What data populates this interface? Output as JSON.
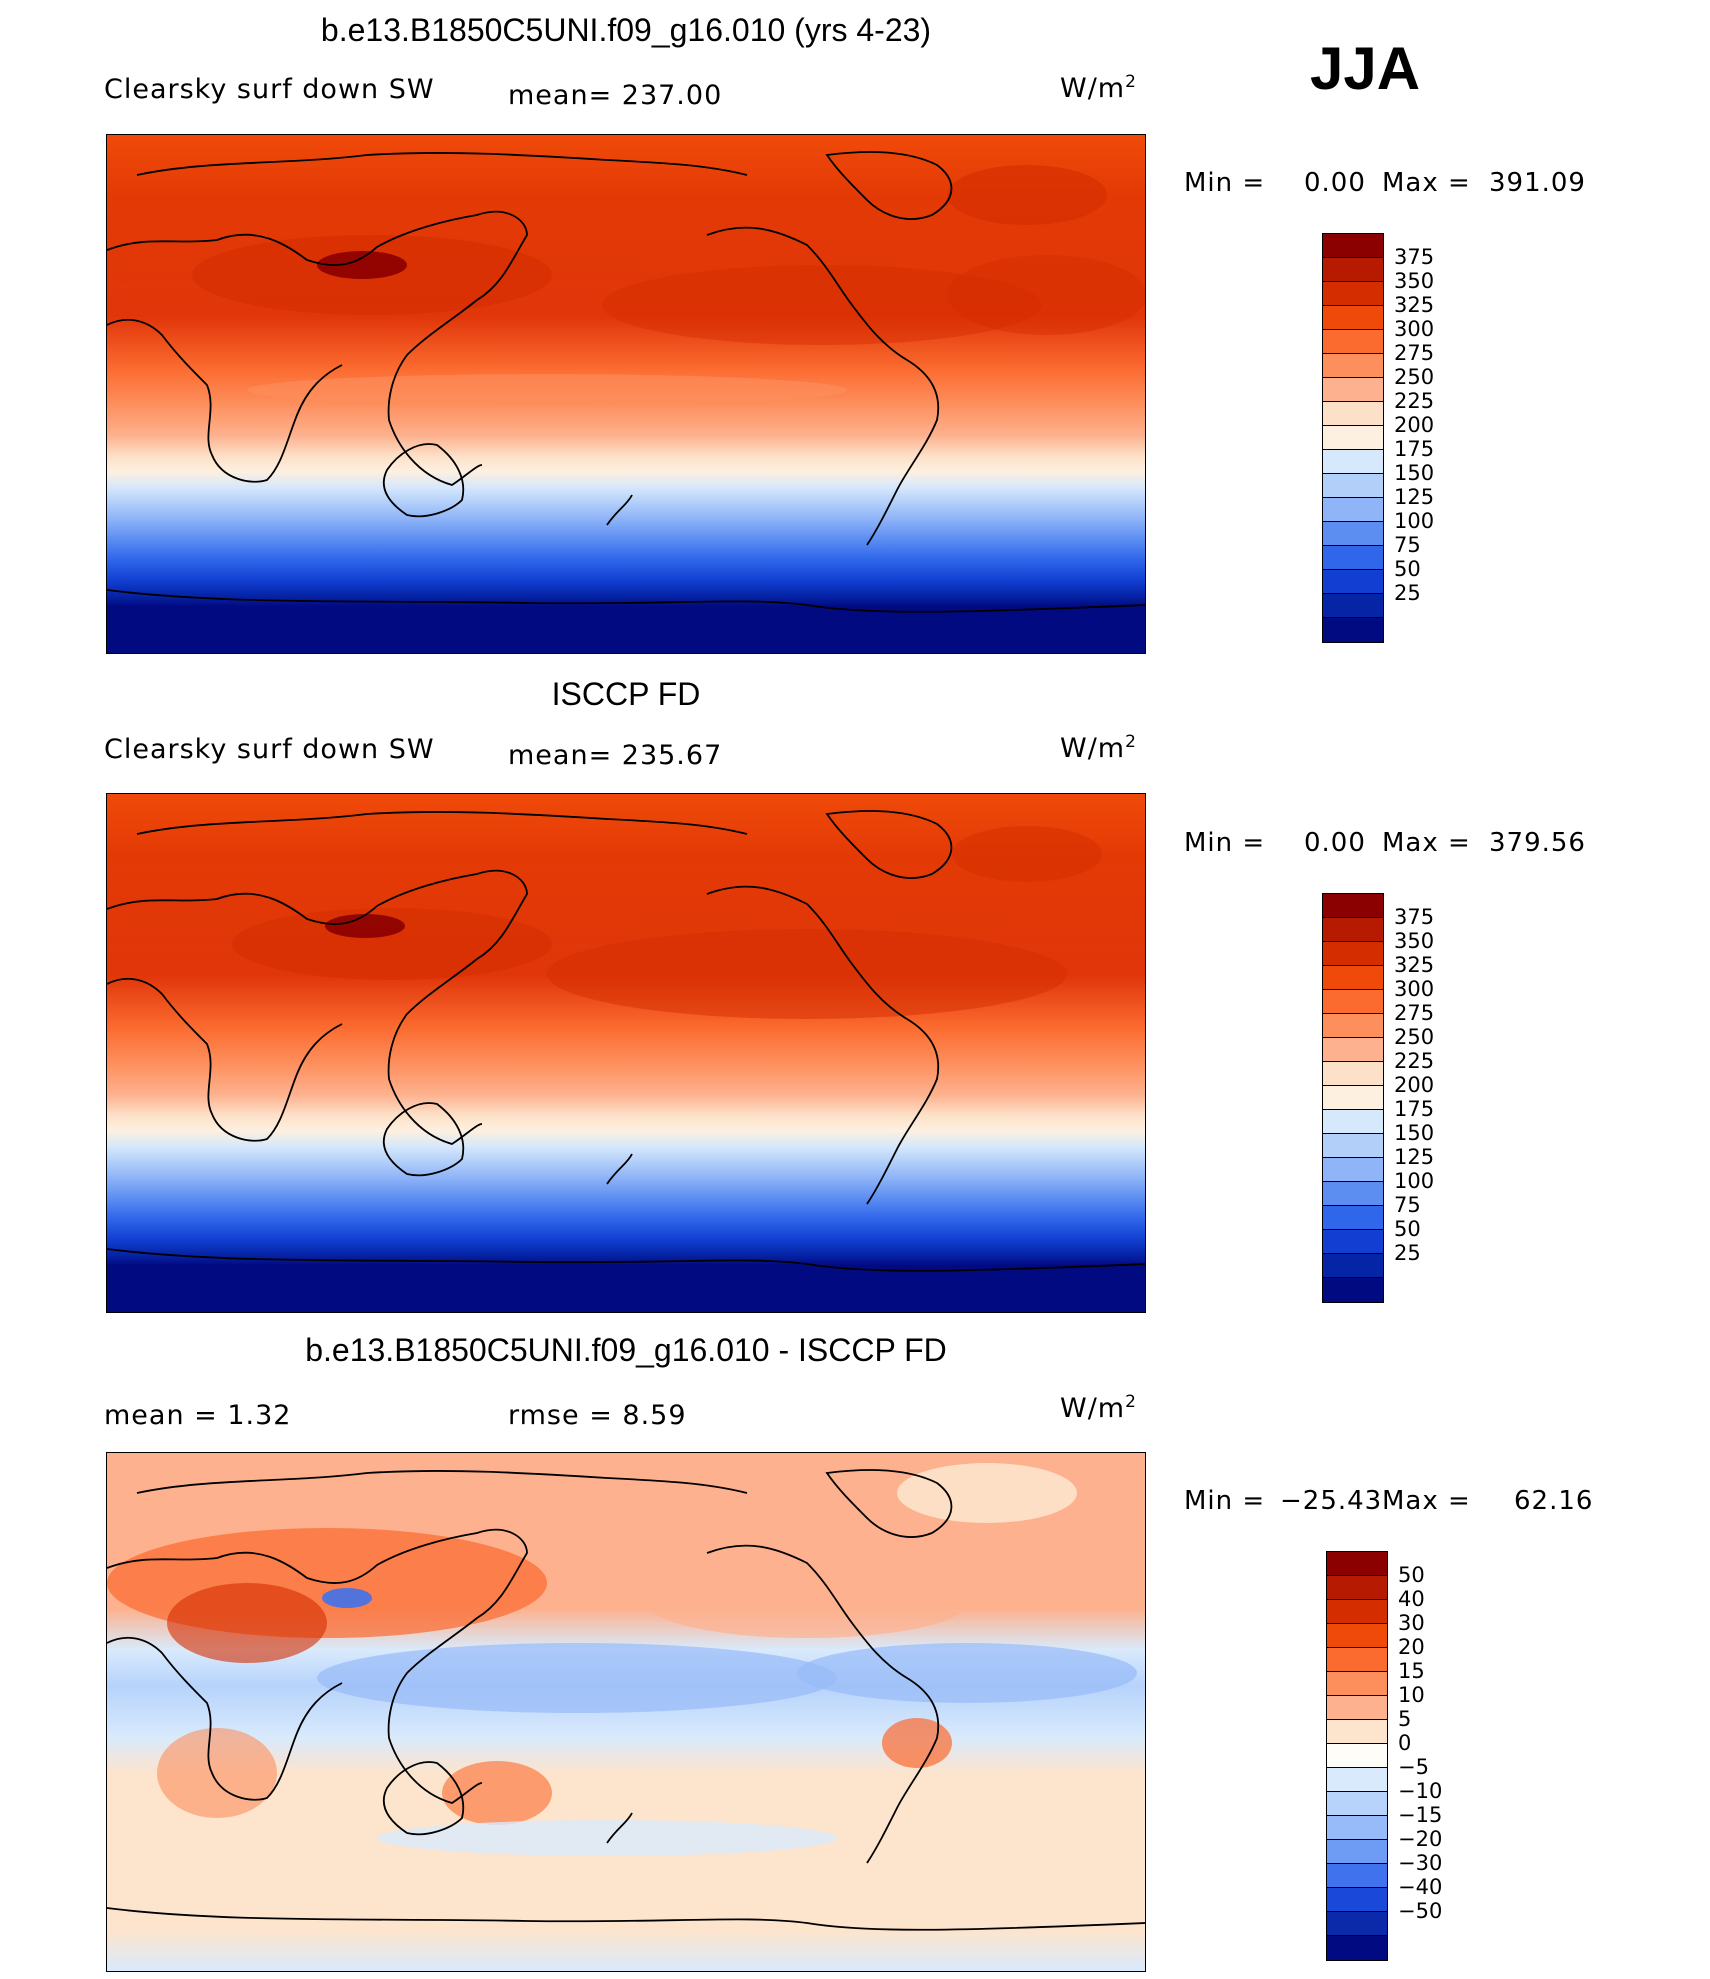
{
  "season": "JJA",
  "panels": [
    {
      "title": "b.e13.B1850C5UNI.f09_g16.010 (yrs 4-23)",
      "left_text": "Clearsky  surf  down  SW",
      "mid_text": "mean=  237.00",
      "units_base": "W/m",
      "units_exp": "2",
      "min_label": "Min  =",
      "min_value": "0.00",
      "max_label": "Max  =",
      "max_value": "391.09",
      "colorbar": {
        "colors": [
          "#8b0000",
          "#b61a00",
          "#d42d00",
          "#f04a0a",
          "#fb6a2f",
          "#fd8f5d",
          "#fdb18e",
          "#fde0c8",
          "#fdf0e0",
          "#d6e8fb",
          "#b2cffa",
          "#8fb4f7",
          "#5c8ef2",
          "#2f66ea",
          "#123fd2",
          "#0524a6",
          "#020a82"
        ],
        "labels": [
          "375",
          "350",
          "325",
          "300",
          "275",
          "250",
          "225",
          "200",
          "175",
          "150",
          "125",
          "100",
          "75",
          "50",
          "25"
        ]
      }
    },
    {
      "title": "ISCCP FD",
      "left_text": "Clearsky  surf  down  SW",
      "mid_text": "mean=  235.67",
      "units_base": "W/m",
      "units_exp": "2",
      "min_label": "Min  =",
      "min_value": "0.00",
      "max_label": "Max  =",
      "max_value": "379.56",
      "colorbar": {
        "colors": [
          "#8b0000",
          "#b61a00",
          "#d42d00",
          "#f04a0a",
          "#fb6a2f",
          "#fd8f5d",
          "#fdb18e",
          "#fde0c8",
          "#fdf0e0",
          "#d6e8fb",
          "#b2cffa",
          "#8fb4f7",
          "#5c8ef2",
          "#2f66ea",
          "#123fd2",
          "#0524a6",
          "#020a82"
        ],
        "labels": [
          "375",
          "350",
          "325",
          "300",
          "275",
          "250",
          "225",
          "200",
          "175",
          "150",
          "125",
          "100",
          "75",
          "50",
          "25"
        ]
      }
    },
    {
      "title": "b.e13.B1850C5UNI.f09_g16.010 - ISCCP FD",
      "left_text": "mean  =      1.32",
      "mid_text": "rmse  =      8.59",
      "units_base": "W/m",
      "units_exp": "2",
      "min_label": "Min  =",
      "min_value": "−25.43",
      "max_label": "Max  =",
      "max_value": "62.16",
      "colorbar": {
        "colors": [
          "#8b0000",
          "#b61a00",
          "#d42d00",
          "#f04a0a",
          "#fb6a2f",
          "#fd8f5d",
          "#fdb18e",
          "#fde4cc",
          "#fffdf8",
          "#d9eafc",
          "#b7d3fb",
          "#97bbf8",
          "#6e9bf3",
          "#3f72ec",
          "#1a48d8",
          "#0a2aa9",
          "#020a82"
        ],
        "labels": [
          "50",
          "40",
          "30",
          "20",
          "15",
          "10",
          "5",
          "0",
          "−5",
          "−10",
          "−15",
          "−20",
          "−30",
          "−40",
          "−50"
        ]
      }
    }
  ]
}
